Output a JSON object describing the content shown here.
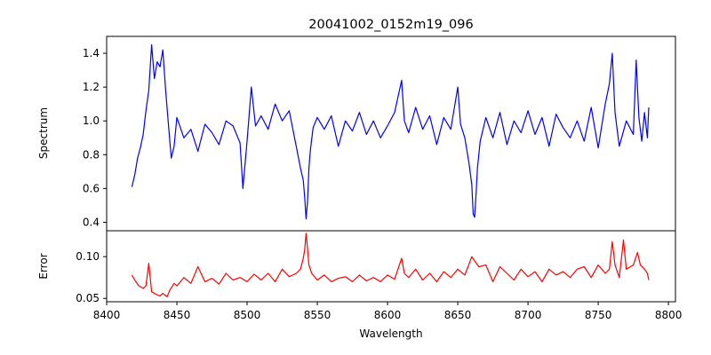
{
  "chart_data": {
    "type": "line",
    "title": "20041002_0152m19_096",
    "xlabel": "Wavelength",
    "xlim": [
      8400,
      8805
    ],
    "xticks": [
      8400,
      8450,
      8500,
      8550,
      8600,
      8650,
      8700,
      8750,
      8800
    ],
    "panels": [
      {
        "name": "spectrum",
        "ylabel": "Spectrum",
        "ylim": [
          0.35,
          1.5
        ],
        "yticks": [
          "0.4",
          "0.6",
          "0.8",
          "1.0",
          "1.2",
          "1.4"
        ],
        "series": [
          {
            "color": "#0000ff",
            "x": [
              8418,
              8420,
              8422,
              8424,
              8426,
              8428,
              8430,
              8432,
              8434,
              8436,
              8438,
              8440,
              8442,
              8444,
              8446,
              8448,
              8450,
              8455,
              8460,
              8465,
              8470,
              8475,
              8480,
              8485,
              8490,
              8495,
              8497,
              8500,
              8503,
              8506,
              8510,
              8515,
              8520,
              8525,
              8530,
              8535,
              8538,
              8540,
              8541,
              8542,
              8543,
              8544,
              8545,
              8547,
              8550,
              8555,
              8560,
              8565,
              8570,
              8575,
              8580,
              8585,
              8590,
              8595,
              8600,
              8605,
              8610,
              8612,
              8615,
              8620,
              8625,
              8630,
              8635,
              8640,
              8645,
              8650,
              8652,
              8655,
              8658,
              8660,
              8661,
              8662,
              8663,
              8664,
              8666,
              8670,
              8675,
              8680,
              8685,
              8690,
              8695,
              8700,
              8705,
              8710,
              8715,
              8720,
              8725,
              8730,
              8735,
              8740,
              8745,
              8750,
              8755,
              8758,
              8760,
              8762,
              8765,
              8770,
              8775,
              8777,
              8779,
              8781,
              8783,
              8785,
              8786
            ],
            "y": [
              0.61,
              0.68,
              0.78,
              0.84,
              0.92,
              1.06,
              1.18,
              1.45,
              1.25,
              1.35,
              1.32,
              1.42,
              1.18,
              0.98,
              0.78,
              0.85,
              1.02,
              0.9,
              0.95,
              0.82,
              0.98,
              0.93,
              0.86,
              1.0,
              0.97,
              0.87,
              0.6,
              0.88,
              1.2,
              0.97,
              1.03,
              0.95,
              1.1,
              1.0,
              1.06,
              0.85,
              0.72,
              0.65,
              0.55,
              0.42,
              0.52,
              0.72,
              0.82,
              0.96,
              1.02,
              0.95,
              1.03,
              0.85,
              1.0,
              0.94,
              1.05,
              0.92,
              1.0,
              0.9,
              0.97,
              1.05,
              1.24,
              1.0,
              0.93,
              1.08,
              0.95,
              1.03,
              0.86,
              1.02,
              0.95,
              1.2,
              0.98,
              0.9,
              0.75,
              0.62,
              0.45,
              0.43,
              0.56,
              0.72,
              0.88,
              1.02,
              0.9,
              1.05,
              0.86,
              1.0,
              0.93,
              1.06,
              0.92,
              1.02,
              0.85,
              1.04,
              0.96,
              0.9,
              1.0,
              0.88,
              1.08,
              0.84,
              1.1,
              1.22,
              1.4,
              1.05,
              0.85,
              1.0,
              0.92,
              1.36,
              1.02,
              0.88,
              1.05,
              0.9,
              1.08
            ]
          }
        ]
      },
      {
        "name": "error",
        "ylabel": "Error",
        "ylim": [
          0.046,
          0.131
        ],
        "yticks": [
          "0.05",
          "0.10"
        ],
        "series": [
          {
            "color": "#ff0000",
            "x": [
              8418,
              8420,
              8423,
              8426,
              8428,
              8430,
              8432,
              8435,
              8438,
              8440,
              8443,
              8445,
              8448,
              8450,
              8455,
              8460,
              8465,
              8470,
              8475,
              8480,
              8485,
              8490,
              8495,
              8500,
              8505,
              8510,
              8515,
              8520,
              8525,
              8530,
              8535,
              8538,
              8540,
              8541,
              8542,
              8543,
              8544,
              8546,
              8550,
              8555,
              8560,
              8565,
              8570,
              8575,
              8580,
              8585,
              8590,
              8595,
              8600,
              8605,
              8610,
              8612,
              8615,
              8620,
              8625,
              8630,
              8635,
              8640,
              8645,
              8650,
              8655,
              8660,
              8662,
              8665,
              8670,
              8675,
              8680,
              8685,
              8690,
              8695,
              8700,
              8705,
              8710,
              8715,
              8720,
              8725,
              8730,
              8735,
              8740,
              8745,
              8750,
              8755,
              8758,
              8760,
              8762,
              8765,
              8768,
              8770,
              8775,
              8778,
              8780,
              8783,
              8785,
              8786
            ],
            "y": [
              0.078,
              0.072,
              0.065,
              0.062,
              0.065,
              0.092,
              0.058,
              0.055,
              0.053,
              0.056,
              0.052,
              0.06,
              0.068,
              0.065,
              0.075,
              0.068,
              0.088,
              0.07,
              0.074,
              0.067,
              0.08,
              0.072,
              0.075,
              0.07,
              0.079,
              0.072,
              0.08,
              0.07,
              0.085,
              0.076,
              0.08,
              0.085,
              0.098,
              0.108,
              0.128,
              0.11,
              0.09,
              0.08,
              0.072,
              0.078,
              0.07,
              0.074,
              0.076,
              0.07,
              0.078,
              0.071,
              0.075,
              0.07,
              0.078,
              0.073,
              0.098,
              0.08,
              0.075,
              0.085,
              0.072,
              0.08,
              0.07,
              0.082,
              0.075,
              0.085,
              0.078,
              0.1,
              0.095,
              0.088,
              0.09,
              0.07,
              0.088,
              0.08,
              0.072,
              0.085,
              0.076,
              0.082,
              0.07,
              0.085,
              0.078,
              0.082,
              0.075,
              0.085,
              0.088,
              0.075,
              0.09,
              0.08,
              0.085,
              0.118,
              0.09,
              0.075,
              0.12,
              0.085,
              0.09,
              0.105,
              0.09,
              0.085,
              0.08,
              0.072
            ]
          }
        ]
      }
    ]
  }
}
